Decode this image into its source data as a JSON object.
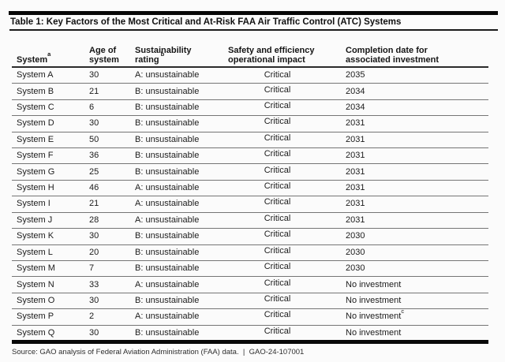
{
  "table": {
    "title": "Table 1: Key Factors of the Most Critical and At-Risk FAA Air Traffic Control (ATC) Systems",
    "columns": {
      "system": {
        "label": "System",
        "sup": "a"
      },
      "age": {
        "line1": "Age of",
        "line2": "system"
      },
      "sustainability": {
        "line1": "Sustainability",
        "line2": "rating",
        "sup": "b"
      },
      "impact": {
        "line1": "Safety and efficiency",
        "line2": "operational impact"
      },
      "completion": {
        "line1": "Completion date for",
        "line2": "associated investment"
      }
    },
    "rows": [
      {
        "system": "System A",
        "age": "30",
        "rating": "A: unsustainable",
        "impact": "Critical",
        "completion": "2035",
        "completion_sup": ""
      },
      {
        "system": "System B",
        "age": "21",
        "rating": "B: unsustainable",
        "impact": "Critical",
        "completion": "2034",
        "completion_sup": ""
      },
      {
        "system": "System C",
        "age": "6",
        "rating": "B: unsustainable",
        "impact": "Critical",
        "completion": "2034",
        "completion_sup": ""
      },
      {
        "system": "System D",
        "age": "30",
        "rating": "B: unsustainable",
        "impact": "Critical",
        "completion": "2031",
        "completion_sup": ""
      },
      {
        "system": "System E",
        "age": "50",
        "rating": "B: unsustainable",
        "impact": "Critical",
        "completion": "2031",
        "completion_sup": ""
      },
      {
        "system": "System F",
        "age": "36",
        "rating": "B: unsustainable",
        "impact": "Critical",
        "completion": "2031",
        "completion_sup": ""
      },
      {
        "system": "System G",
        "age": "25",
        "rating": "B: unsustainable",
        "impact": "Critical",
        "completion": "2031",
        "completion_sup": ""
      },
      {
        "system": "System H",
        "age": "46",
        "rating": "A: unsustainable",
        "impact": "Critical",
        "completion": "2031",
        "completion_sup": ""
      },
      {
        "system": "System I",
        "age": "21",
        "rating": "A: unsustainable",
        "impact": "Critical",
        "completion": "2031",
        "completion_sup": ""
      },
      {
        "system": "System J",
        "age": "28",
        "rating": "A: unsustainable",
        "impact": "Critical",
        "completion": "2031",
        "completion_sup": ""
      },
      {
        "system": "System K",
        "age": "30",
        "rating": "B: unsustainable",
        "impact": "Critical",
        "completion": "2030",
        "completion_sup": ""
      },
      {
        "system": "System L",
        "age": "20",
        "rating": "B: unsustainable",
        "impact": "Critical",
        "completion": "2030",
        "completion_sup": ""
      },
      {
        "system": "System M",
        "age": "7",
        "rating": "B: unsustainable",
        "impact": "Critical",
        "completion": "2030",
        "completion_sup": ""
      },
      {
        "system": "System N",
        "age": "33",
        "rating": "A: unsustainable",
        "impact": "Critical",
        "completion": "No investment",
        "completion_sup": ""
      },
      {
        "system": "System O",
        "age": "30",
        "rating": "B: unsustainable",
        "impact": "Critical",
        "completion": "No investment",
        "completion_sup": ""
      },
      {
        "system": "System P",
        "age": "2",
        "rating": "A: unsustainable",
        "impact": "Critical",
        "completion": "No investment",
        "completion_sup": "c"
      },
      {
        "system": "System Q",
        "age": "30",
        "rating": "B: unsustainable",
        "impact": "Critical",
        "completion": "No investment",
        "completion_sup": ""
      }
    ]
  },
  "footer": {
    "source": "Source: GAO analysis of Federal Aviation Administration (FAA) data.  |  GAO-24-107001"
  }
}
